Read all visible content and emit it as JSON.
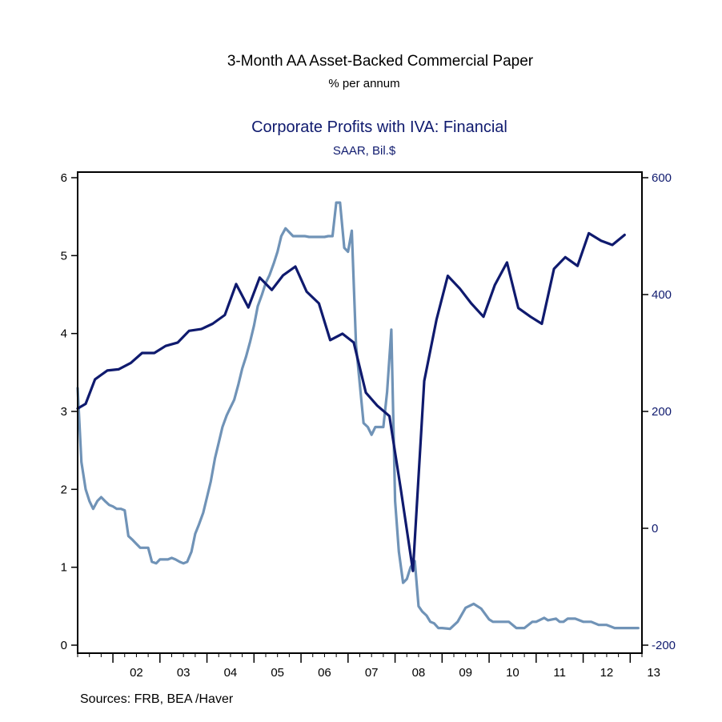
{
  "chart_data": {
    "type": "line",
    "titles": [
      {
        "title": "3-Month AA Asset-Backed Commercial Paper",
        "subtitle": "% per annum",
        "color": "#000000"
      },
      {
        "title": "Corporate Profits with IVA: Financial",
        "subtitle": "SAAR, Bil.$",
        "color": "#0f1a6e"
      }
    ],
    "x_axis": {
      "start": 2001.25,
      "end": 2013.25,
      "labels": [
        "02",
        "03",
        "04",
        "05",
        "06",
        "07",
        "08",
        "09",
        "10",
        "11",
        "12",
        "13"
      ]
    },
    "y_left": {
      "min": 0,
      "max": 6,
      "ticks": [
        "0",
        "1",
        "2",
        "3",
        "4",
        "5",
        "6"
      ],
      "color": "#000000"
    },
    "y_right": {
      "min": -200,
      "max": 600,
      "ticks": [
        "-200",
        "0",
        "200",
        "400",
        "600"
      ],
      "color": "#0f1a6e"
    },
    "series": [
      {
        "axis": "left",
        "color": "#7093b7",
        "x": [
          2001.25,
          2001.33,
          2001.42,
          2001.5,
          2001.58,
          2001.67,
          2001.75,
          2001.83,
          2001.92,
          2002.0,
          2002.08,
          2002.17,
          2002.25,
          2002.33,
          2002.42,
          2002.5,
          2002.58,
          2002.67,
          2002.75,
          2002.83,
          2002.92,
          2003.0,
          2003.08,
          2003.17,
          2003.25,
          2003.33,
          2003.42,
          2003.5,
          2003.58,
          2003.67,
          2003.75,
          2003.83,
          2003.92,
          2004.0,
          2004.08,
          2004.17,
          2004.25,
          2004.33,
          2004.42,
          2004.5,
          2004.58,
          2004.67,
          2004.75,
          2004.83,
          2004.92,
          2005.0,
          2005.08,
          2005.17,
          2005.25,
          2005.33,
          2005.42,
          2005.5,
          2005.58,
          2005.67,
          2005.75,
          2005.83,
          2005.92,
          2006.0,
          2006.08,
          2006.17,
          2006.25,
          2006.33,
          2006.42,
          2006.5,
          2006.58,
          2006.67,
          2006.75,
          2006.83,
          2006.92,
          2007.0,
          2007.08,
          2007.17,
          2007.25,
          2007.33,
          2007.42,
          2007.5,
          2007.58,
          2007.67,
          2007.75,
          2007.83,
          2007.92,
          2008.0,
          2008.08,
          2008.17,
          2008.25,
          2008.33,
          2008.42,
          2008.5,
          2008.58,
          2008.67,
          2008.75,
          2008.83,
          2008.92,
          2009.0,
          2009.17,
          2009.33,
          2009.5,
          2009.67,
          2009.83,
          2010.0,
          2010.08,
          2010.17,
          2010.25,
          2010.42,
          2010.58,
          2010.75,
          2010.92,
          2011.0,
          2011.17,
          2011.25,
          2011.42,
          2011.5,
          2011.58,
          2011.67,
          2011.83,
          2012.0,
          2012.08,
          2012.17,
          2012.33,
          2012.5,
          2012.67,
          2012.83,
          2013.0,
          2013.17
        ],
        "values": [
          3.3,
          2.35,
          2.0,
          1.85,
          1.75,
          1.85,
          1.9,
          1.85,
          1.8,
          1.78,
          1.75,
          1.75,
          1.73,
          1.4,
          1.35,
          1.3,
          1.25,
          1.25,
          1.25,
          1.07,
          1.05,
          1.1,
          1.1,
          1.1,
          1.12,
          1.1,
          1.07,
          1.05,
          1.07,
          1.2,
          1.43,
          1.55,
          1.7,
          1.9,
          2.1,
          2.4,
          2.6,
          2.8,
          2.95,
          3.05,
          3.15,
          3.35,
          3.55,
          3.7,
          3.9,
          4.1,
          4.35,
          4.5,
          4.65,
          4.75,
          4.9,
          5.05,
          5.25,
          5.35,
          5.3,
          5.25,
          5.25,
          5.25,
          5.25,
          5.24,
          5.24,
          5.24,
          5.24,
          5.24,
          5.25,
          5.25,
          5.68,
          5.68,
          5.1,
          5.05,
          5.32,
          3.85,
          3.35,
          2.85,
          2.8,
          2.7,
          2.8,
          2.8,
          2.8,
          3.25,
          4.05,
          1.85,
          1.2,
          0.8,
          0.85,
          1.0,
          1.08,
          0.5,
          0.43,
          0.38,
          0.3,
          0.28,
          0.22,
          0.22,
          0.21,
          0.3,
          0.48,
          0.53,
          0.47,
          0.33,
          0.3,
          0.3,
          0.3,
          0.3,
          0.22,
          0.22,
          0.3,
          0.3,
          0.35,
          0.32,
          0.34,
          0.3,
          0.3,
          0.34,
          0.34,
          0.3,
          0.3,
          0.3,
          0.26,
          0.26,
          0.22,
          0.22,
          0.22,
          0.22
        ]
      },
      {
        "axis": "right",
        "color": "#0f1a6e",
        "x": [
          2001.25,
          2001.42,
          2001.62,
          2001.88,
          2002.12,
          2002.38,
          2002.62,
          2002.88,
          2003.12,
          2003.38,
          2003.62,
          2003.88,
          2004.12,
          2004.38,
          2004.62,
          2004.88,
          2005.12,
          2005.38,
          2005.62,
          2005.88,
          2006.12,
          2006.38,
          2006.62,
          2006.88,
          2007.12,
          2007.38,
          2007.62,
          2007.88,
          2008.12,
          2008.38,
          2008.62,
          2008.88,
          2009.12,
          2009.38,
          2009.62,
          2009.88,
          2010.12,
          2010.38,
          2010.62,
          2010.88,
          2011.12,
          2011.38,
          2011.62,
          2011.88,
          2012.12,
          2012.38,
          2012.62,
          2012.88
        ],
        "values": [
          205,
          213,
          255,
          270,
          272,
          283,
          300,
          300,
          312,
          318,
          338,
          341,
          350,
          365,
          418,
          378,
          429,
          408,
          433,
          448,
          405,
          385,
          322,
          333,
          318,
          232,
          210,
          192,
          68,
          -73,
          252,
          357,
          432,
          410,
          385,
          362,
          416,
          455,
          377,
          362,
          350,
          444,
          464,
          449,
          505,
          492,
          485,
          502
        ]
      }
    ],
    "source": "Sources:   FRB, BEA /Haver"
  }
}
